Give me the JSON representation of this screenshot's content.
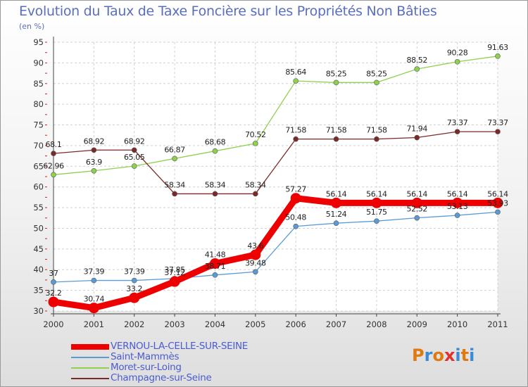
{
  "title": "Evolution du Taux de Taxe Foncière sur les Propriétés Non Bâties",
  "subtitle": "(en %)",
  "logo": {
    "letters": [
      "P",
      "r",
      "o",
      "x",
      "i",
      "t",
      "i"
    ],
    "colors": [
      "#e07a10",
      "#3a8ad8",
      "#e07a10",
      "#e03030",
      "#3a8ad8",
      "#e07a10",
      "#3a8ad8"
    ]
  },
  "chart_data": {
    "type": "line",
    "x": [
      "2000",
      "2001",
      "2002",
      "2003",
      "2004",
      "2005",
      "2006",
      "2007",
      "2008",
      "2009",
      "2010",
      "2011"
    ],
    "ylim": [
      30,
      95
    ],
    "yticks": [
      "30",
      "35",
      "40",
      "45",
      "50",
      "55",
      "60",
      "65",
      "70",
      "75",
      "80",
      "85",
      "90",
      "95"
    ],
    "grid": true,
    "legend_position": "bottom-left",
    "series": [
      {
        "name": "VERNOU-LA-CELLE-SUR-SEINE",
        "color": "#ee0000",
        "values": [
          32.2,
          30.74,
          33.2,
          37.12,
          41.48,
          43.6,
          57.27,
          56.14,
          56.14,
          56.14,
          56.14,
          56.14
        ],
        "labels": [
          "32.2",
          "30.74",
          "33.2",
          "37.12",
          "41.48",
          "43.6",
          "57.27",
          "56.14",
          "56.14",
          "56.14",
          "56.14",
          "56.14"
        ]
      },
      {
        "name": "Saint-Mammès",
        "color": "#5b9bd5",
        "values": [
          37,
          37.39,
          37.39,
          37.85,
          38.71,
          39.48,
          50.48,
          51.24,
          51.75,
          52.52,
          53.13,
          53.93
        ],
        "labels": [
          "37",
          "37.39",
          "37.39",
          "37.85",
          "38.71",
          "39.48",
          "50.48",
          "51.24",
          "51.75",
          "52.52",
          "53.13",
          "53.93"
        ]
      },
      {
        "name": "Moret-sur-Loing",
        "color": "#8fd14f",
        "values": [
          62.96,
          63.9,
          65.05,
          66.87,
          68.68,
          70.52,
          85.64,
          85.25,
          85.25,
          88.52,
          90.28,
          91.63
        ],
        "labels": [
          "62.96",
          "63.9",
          "65.05",
          "66.87",
          "68.68",
          "70.52",
          "85.64",
          "85.25",
          "85.25",
          "88.52",
          "90.28",
          "91.63"
        ]
      },
      {
        "name": "Champagne-sur-Seine",
        "color": "#7b2a2a",
        "values": [
          68.1,
          68.92,
          68.92,
          58.34,
          58.34,
          58.34,
          71.58,
          71.58,
          71.58,
          71.94,
          73.37,
          73.37
        ],
        "labels": [
          "68.1",
          "68.92",
          "68.92",
          "58.34",
          "58.34",
          "58.34",
          "71.58",
          "71.58",
          "71.58",
          "71.94",
          "73.37",
          "73.37"
        ]
      }
    ]
  }
}
